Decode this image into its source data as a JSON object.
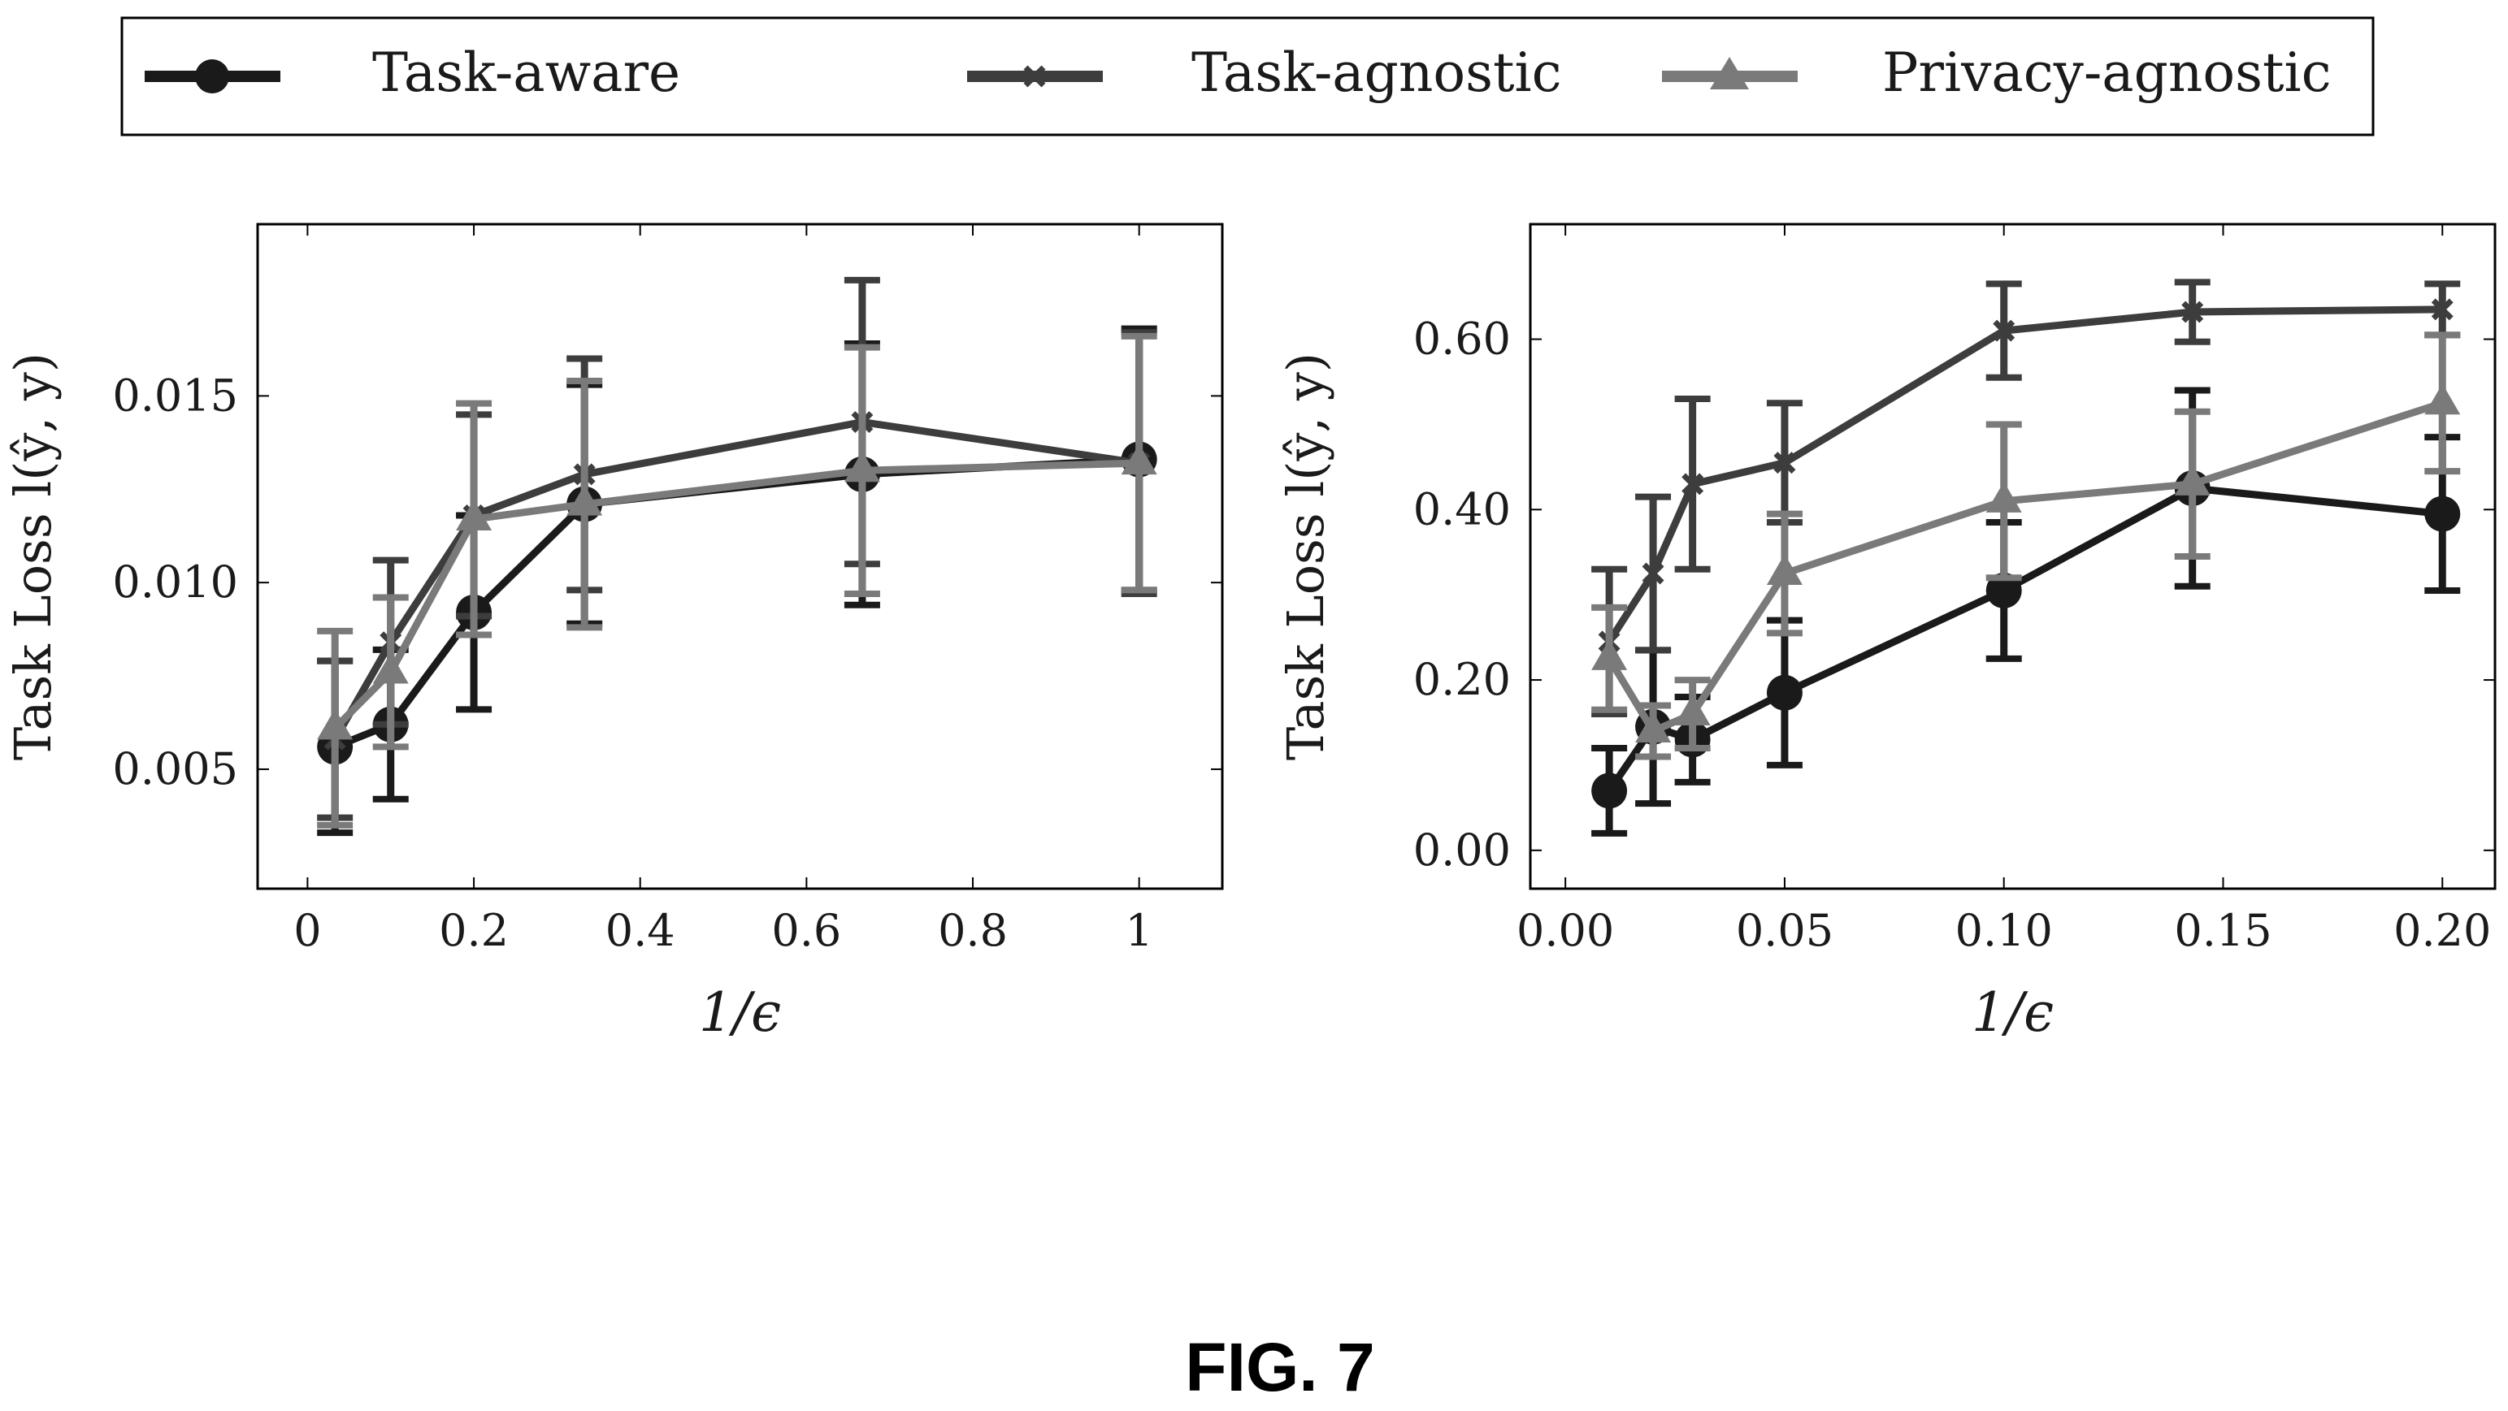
{
  "figure_label": "FIG. 7",
  "legend": [
    {
      "name": "Task-aware",
      "marker": "circle",
      "color": "#1a1a1a"
    },
    {
      "name": "Task-agnostic",
      "marker": "x",
      "color": "#3d3d3d"
    },
    {
      "name": "Privacy-agnostic",
      "marker": "triangle",
      "color": "#7a7a7a"
    }
  ],
  "chart_data": [
    {
      "type": "line",
      "xlabel": "1/ϵ",
      "ylabel": "Task Loss l(ŷ, y)",
      "xlim": [
        -0.06,
        1.1
      ],
      "ylim": [
        0.0018,
        0.0196
      ],
      "xticks": [
        0,
        0.2,
        0.4,
        0.6,
        0.8,
        1
      ],
      "xtick_labels": [
        "0",
        "0.2",
        "0.4",
        "0.6",
        "0.8",
        "1"
      ],
      "yticks": [
        0.005,
        0.01,
        0.015
      ],
      "ytick_labels": [
        "0.005",
        "0.010",
        "0.015"
      ],
      "x": [
        0.033,
        0.1,
        0.2,
        0.333,
        0.667,
        1.0
      ],
      "series": [
        {
          "name": "Task-aware",
          "values": [
            0.0056,
            0.0062,
            0.0092,
            0.0121,
            0.0129,
            0.0133
          ],
          "err": [
            0.0023,
            0.002,
            0.0026,
            0.0032,
            0.0035,
            0.0035
          ]
        },
        {
          "name": "Task-agnostic",
          "values": [
            0.0058,
            0.0084,
            0.0118,
            0.0129,
            0.0143,
            0.0132
          ],
          "err": [
            0.0021,
            0.0022,
            0.0027,
            0.0031,
            0.0038,
            0.0035
          ]
        },
        {
          "name": "Privacy-agnostic",
          "values": [
            0.0061,
            0.0076,
            0.0117,
            0.0121,
            0.013,
            0.0132
          ],
          "err": [
            0.0026,
            0.002,
            0.0031,
            0.0033,
            0.0033,
            0.0034
          ]
        }
      ]
    },
    {
      "type": "line",
      "xlabel": "1/ϵ",
      "ylabel": "Task Loss l(ŷ, y)",
      "xlim": [
        -0.008,
        0.212
      ],
      "ylim": [
        -0.045,
        0.735
      ],
      "xticks": [
        0,
        0.05,
        0.1,
        0.15,
        0.2
      ],
      "xtick_labels": [
        "0.00",
        "0.05",
        "0.10",
        "0.15",
        "0.20"
      ],
      "yticks": [
        0,
        0.2,
        0.4,
        0.6
      ],
      "ytick_labels": [
        "0.00",
        "0.20",
        "0.40",
        "0.60"
      ],
      "x": [
        0.01,
        0.02,
        0.029,
        0.05,
        0.1,
        0.143,
        0.2
      ],
      "series": [
        {
          "name": "Task-aware",
          "values": [
            0.07,
            0.145,
            0.13,
            0.185,
            0.305,
            0.425,
            0.395
          ],
          "err": [
            0.05,
            0.09,
            0.05,
            0.085,
            0.08,
            0.115,
            0.09
          ]
        },
        {
          "name": "Task-agnostic",
          "values": [
            0.245,
            0.325,
            0.43,
            0.455,
            0.61,
            0.632,
            0.635
          ],
          "err": [
            0.085,
            0.09,
            0.1,
            0.07,
            0.055,
            0.035,
            0.03
          ]
        },
        {
          "name": "Privacy-agnostic",
          "values": [
            0.225,
            0.14,
            0.16,
            0.325,
            0.41,
            0.43,
            0.525
          ],
          "err": [
            0.06,
            0.03,
            0.04,
            0.07,
            0.09,
            0.085,
            0.08
          ]
        }
      ]
    }
  ]
}
